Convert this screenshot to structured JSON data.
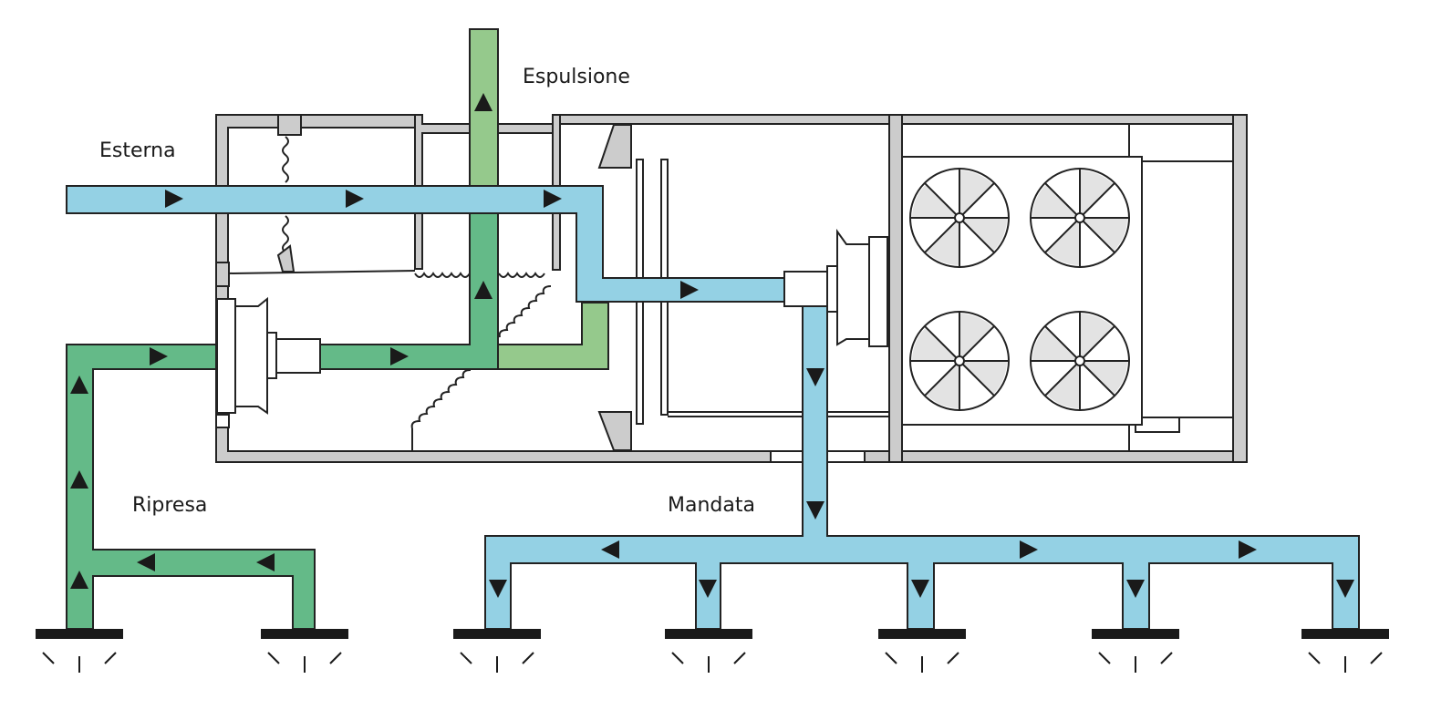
{
  "labels": {
    "outside": "Esterna",
    "exhaust": "Espulsione",
    "return": "Ripresa",
    "supply": "Mandata"
  },
  "colors": {
    "supply_air": "#94d1e4",
    "return_air": "#64ba88",
    "exhaust_air": "#95c98c",
    "casing": "#cccccc",
    "stroke": "#222222",
    "grille": "#1a1a1a"
  },
  "icons": {
    "fan_unit": "fan-icon",
    "flow_arrow": "triangle-arrow-icon",
    "diffuser": "grille-icon"
  }
}
